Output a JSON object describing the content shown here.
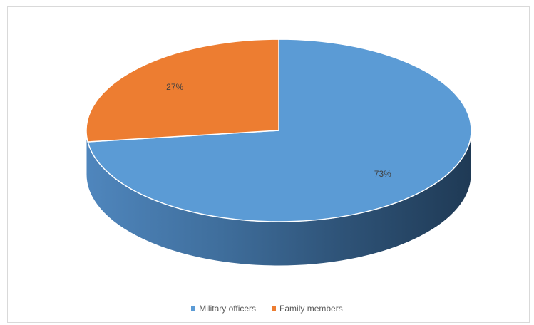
{
  "chart_data": {
    "type": "pie",
    "title": "",
    "style": "3d",
    "slices": [
      {
        "label": "Military officers",
        "value": 73,
        "display": "73%",
        "color": "#5b9bd5"
      },
      {
        "label": "Family members",
        "value": 27,
        "display": "27%",
        "color": "#ed7d31"
      }
    ],
    "legend_position": "bottom"
  }
}
